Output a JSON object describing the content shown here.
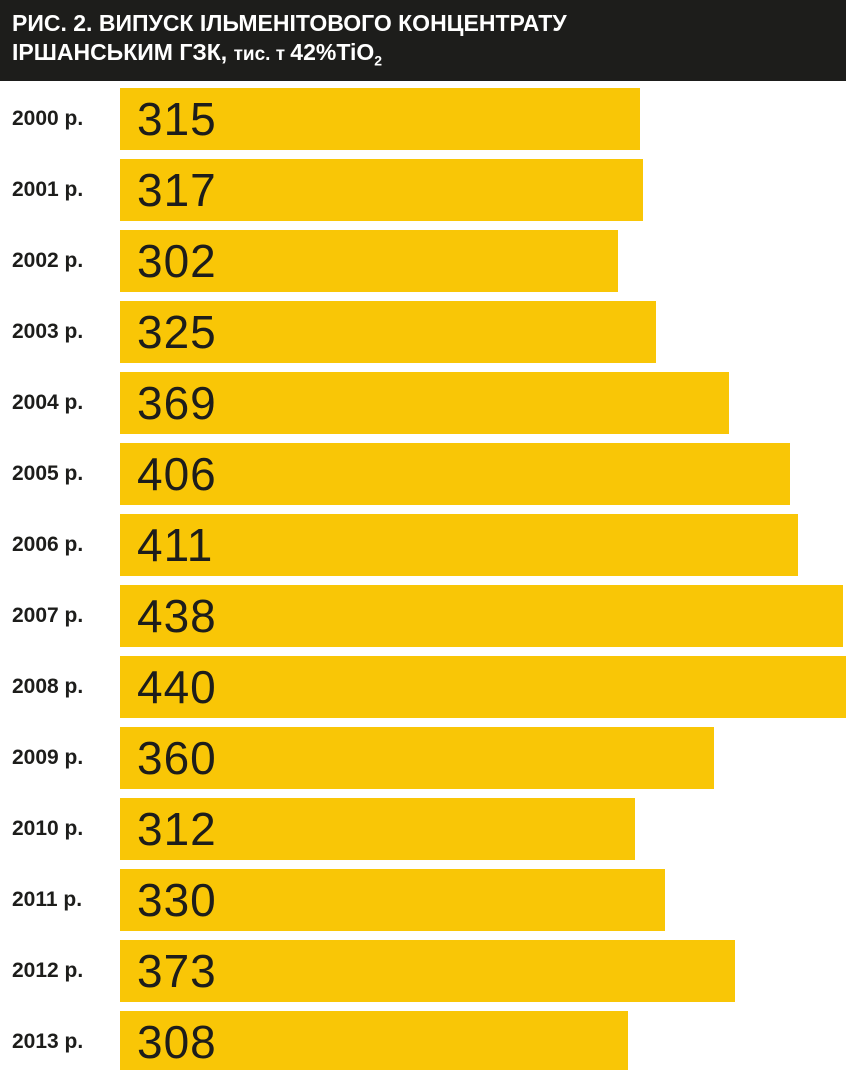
{
  "header": {
    "line1": "РИС. 2. ВИПУСК ІЛЬМЕНІТОВОГО КОНЦЕНТРАТУ",
    "line2_main": "ІРШАНСЬКИМ ГЗК, ",
    "line2_small": "тис. т ",
    "line2_unit": "42%TiO",
    "line2_subscript": "2"
  },
  "chart_data": {
    "type": "bar",
    "orientation": "horizontal",
    "title": "РИС. 2. ВИПУСК ІЛЬМЕНІТОВОГО КОНЦЕНТРАТУ ІРШАНСЬКИМ ГЗК, тис. т 42%TiO2",
    "categories": [
      "2000 р.",
      "2001 р.",
      "2002 р.",
      "2003 р.",
      "2004 р.",
      "2005 р.",
      "2006 р.",
      "2007 р.",
      "2008 р.",
      "2009 р.",
      "2010 р.",
      "2011 р.",
      "2012 р.",
      "2013 р."
    ],
    "values": [
      315,
      317,
      302,
      325,
      369,
      406,
      411,
      438,
      440,
      360,
      312,
      330,
      373,
      308
    ],
    "xlabel": "",
    "ylabel": "",
    "xlim": [
      0,
      440
    ],
    "grid": false,
    "legend": false,
    "bar_color": "#f9c606",
    "value_label_color": "#1d1d1b",
    "header_bg_color": "#1d1d1b",
    "header_text_color": "#ffffff"
  }
}
